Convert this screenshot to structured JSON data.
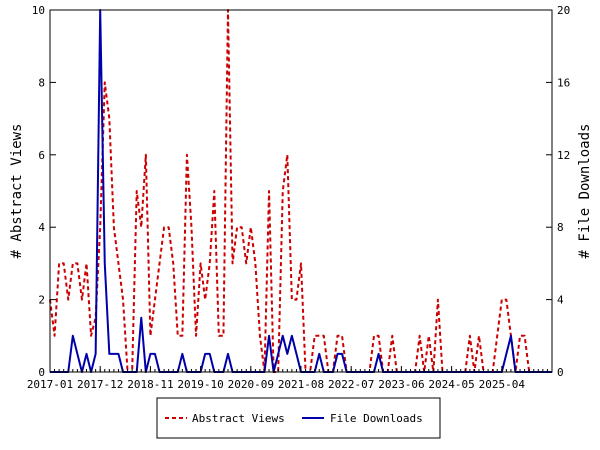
{
  "chart_data": {
    "type": "line",
    "ylabel_left": "# Abstract Views",
    "ylabel_right": "# File Downloads",
    "ylim_left": [
      0,
      10
    ],
    "ylim_right": [
      0,
      20
    ],
    "yticks_left": [
      "0",
      "2",
      "4",
      "6",
      "8",
      "10"
    ],
    "yticks_right": [
      "0",
      "4",
      "8",
      "12",
      "16",
      "20"
    ],
    "xticks": [
      "2017-01",
      "2017-12",
      "2018-11",
      "2019-10",
      "2020-09",
      "2021-08",
      "2022-07",
      "2023-06",
      "2024-05",
      "2025-04"
    ],
    "legend_position": "bottom-center",
    "grid": false,
    "series": [
      {
        "name": "Abstract Views",
        "axis": "left",
        "color": "#cc0000",
        "style": "dashed",
        "values": [
          2,
          1,
          3,
          3,
          2,
          3,
          3,
          2,
          3,
          1,
          1.5,
          4,
          8,
          7,
          4,
          3,
          2,
          0,
          0,
          5,
          4,
          6,
          1,
          2,
          3,
          4,
          4,
          3,
          1,
          1,
          6,
          4,
          1,
          3,
          2,
          3,
          5,
          1,
          1,
          10,
          3,
          4,
          4,
          3,
          4,
          3,
          1,
          0,
          5,
          0,
          0,
          5,
          6,
          2,
          2,
          3,
          0,
          0,
          1,
          1,
          1,
          0,
          0,
          1,
          1,
          0,
          0,
          0,
          0,
          0,
          0,
          1,
          1,
          0,
          0,
          1,
          0,
          0,
          0,
          0,
          0,
          1,
          0,
          1,
          0,
          2,
          0,
          0,
          0,
          0,
          0,
          0,
          1,
          0,
          1,
          0,
          0,
          0,
          1,
          2,
          2,
          1,
          0,
          1,
          1,
          0,
          0,
          0,
          0,
          0,
          0
        ]
      },
      {
        "name": "File Downloads",
        "axis": "right",
        "color": "#0000aa",
        "style": "solid",
        "values": [
          0,
          0,
          0,
          0,
          0,
          2,
          1,
          0,
          1,
          0,
          1,
          20,
          6,
          1,
          1,
          1,
          0,
          0,
          0,
          0,
          3,
          0,
          1,
          1,
          0,
          0,
          0,
          0,
          0,
          1,
          0,
          0,
          0,
          0,
          1,
          1,
          0,
          0,
          0,
          1,
          0,
          0,
          0,
          0,
          0,
          0,
          0,
          0,
          2,
          0,
          1,
          2,
          1,
          2,
          1,
          0,
          0,
          0,
          0,
          1,
          0,
          0,
          0,
          1,
          1,
          0,
          0,
          0,
          0,
          0,
          0,
          0,
          1,
          0,
          0,
          0,
          0,
          0,
          0,
          0,
          0,
          0,
          0,
          0,
          0,
          0,
          0,
          0,
          0,
          0,
          0,
          0,
          0,
          0,
          0,
          0,
          0,
          0,
          0,
          0,
          1,
          2,
          0,
          0,
          0,
          0,
          0,
          0,
          0,
          0,
          0
        ]
      }
    ]
  }
}
